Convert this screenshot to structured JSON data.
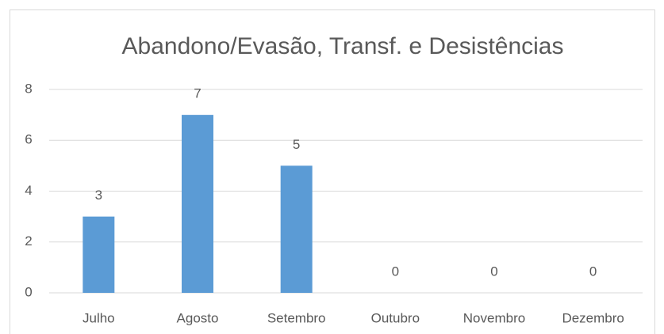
{
  "chart_data": {
    "type": "bar",
    "title": "Abandono/Evasão, Transf. e Desistências",
    "categories": [
      "Julho",
      "Agosto",
      "Setembro",
      "Outubro",
      "Novembro",
      "Dezembro"
    ],
    "values": [
      3,
      7,
      5,
      0,
      0,
      0
    ],
    "color": "#5b9bd5",
    "ylim": [
      0,
      8
    ],
    "yticks": [
      0,
      2,
      4,
      6,
      8
    ],
    "grid": true,
    "data_labels": true
  }
}
